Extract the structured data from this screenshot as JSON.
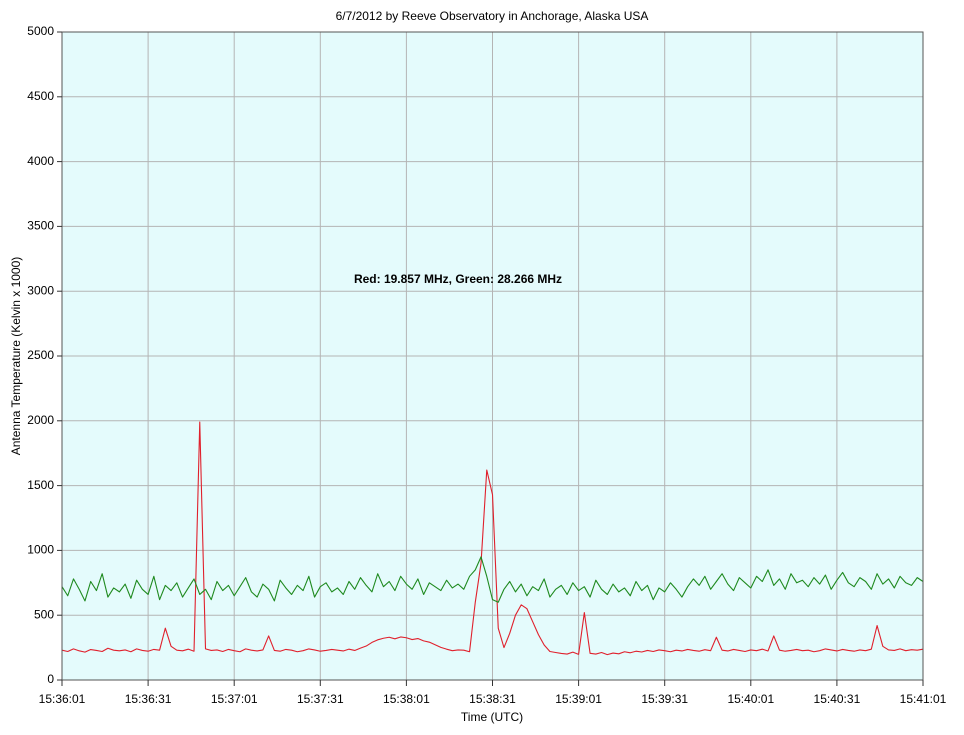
{
  "chart_data": {
    "type": "line",
    "title": "6/7/2012  by  Reeve Observatory  in  Anchorage, Alaska  USA",
    "annotation": "Red: 19.857 MHz, Green: 28.266 MHz",
    "xlabel": "Time (UTC)",
    "ylabel": "Antenna Temperature (Kelvin x 1000)",
    "xlim": [
      "15:36:01",
      "15:41:01"
    ],
    "xticks": [
      "15:36:01",
      "15:36:31",
      "15:37:01",
      "15:37:31",
      "15:38:01",
      "15:38:31",
      "15:39:01",
      "15:39:31",
      "15:40:01",
      "15:40:31",
      "15:41:01"
    ],
    "ylim": [
      0,
      5000
    ],
    "yticks": [
      0,
      500,
      1000,
      1500,
      2000,
      2500,
      3000,
      3500,
      4000,
      4500,
      5000
    ],
    "grid": true,
    "x": [
      "15:36:01",
      "15:36:03",
      "15:36:05",
      "15:36:07",
      "15:36:09",
      "15:36:11",
      "15:36:13",
      "15:36:15",
      "15:36:17",
      "15:36:19",
      "15:36:21",
      "15:36:23",
      "15:36:25",
      "15:36:27",
      "15:36:29",
      "15:36:31",
      "15:36:33",
      "15:36:35",
      "15:36:37",
      "15:36:39",
      "15:36:41",
      "15:36:43",
      "15:36:45",
      "15:36:47",
      "15:36:49",
      "15:36:51",
      "15:36:53",
      "15:36:55",
      "15:36:57",
      "15:36:59",
      "15:37:01",
      "15:37:03",
      "15:37:05",
      "15:37:07",
      "15:37:09",
      "15:37:11",
      "15:37:13",
      "15:37:15",
      "15:37:17",
      "15:37:19",
      "15:37:21",
      "15:37:23",
      "15:37:25",
      "15:37:27",
      "15:37:29",
      "15:37:31",
      "15:37:33",
      "15:37:35",
      "15:37:37",
      "15:37:39",
      "15:37:41",
      "15:37:43",
      "15:37:45",
      "15:37:47",
      "15:37:49",
      "15:37:51",
      "15:37:53",
      "15:37:55",
      "15:37:57",
      "15:37:59",
      "15:38:01",
      "15:38:03",
      "15:38:05",
      "15:38:07",
      "15:38:09",
      "15:38:11",
      "15:38:13",
      "15:38:15",
      "15:38:17",
      "15:38:19",
      "15:38:21",
      "15:38:23",
      "15:38:25",
      "15:38:27",
      "15:38:29",
      "15:38:31",
      "15:38:33",
      "15:38:35",
      "15:38:37",
      "15:38:39",
      "15:38:41",
      "15:38:43",
      "15:38:45",
      "15:38:47",
      "15:38:49",
      "15:38:51",
      "15:38:53",
      "15:38:55",
      "15:38:57",
      "15:38:59",
      "15:39:01",
      "15:39:03",
      "15:39:05",
      "15:39:07",
      "15:39:09",
      "15:39:11",
      "15:39:13",
      "15:39:15",
      "15:39:17",
      "15:39:19",
      "15:39:21",
      "15:39:23",
      "15:39:25",
      "15:39:27",
      "15:39:29",
      "15:39:31",
      "15:39:33",
      "15:39:35",
      "15:39:37",
      "15:39:39",
      "15:39:41",
      "15:39:43",
      "15:39:45",
      "15:39:47",
      "15:39:49",
      "15:39:51",
      "15:39:53",
      "15:39:55",
      "15:39:57",
      "15:39:59",
      "15:40:01",
      "15:40:03",
      "15:40:05",
      "15:40:07",
      "15:40:09",
      "15:40:11",
      "15:40:13",
      "15:40:15",
      "15:40:17",
      "15:40:19",
      "15:40:21",
      "15:40:23",
      "15:40:25",
      "15:40:27",
      "15:40:29",
      "15:40:31",
      "15:40:33",
      "15:40:35",
      "15:40:37",
      "15:40:39",
      "15:40:41",
      "15:40:43",
      "15:40:45",
      "15:40:47",
      "15:40:49",
      "15:40:51",
      "15:40:53",
      "15:40:55",
      "15:40:57",
      "15:40:59",
      "15:41:01"
    ],
    "series": [
      {
        "name": "Red",
        "color": "#e0202c",
        "values": [
          230,
          220,
          240,
          225,
          215,
          235,
          228,
          220,
          245,
          230,
          225,
          232,
          218,
          240,
          228,
          222,
          236,
          230,
          400,
          260,
          230,
          225,
          238,
          222,
          1990,
          240,
          228,
          232,
          220,
          236,
          226,
          218,
          240,
          230,
          224,
          232,
          340,
          228,
          222,
          236,
          230,
          218,
          226,
          240,
          232,
          222,
          228,
          236,
          230,
          224,
          238,
          228,
          246,
          262,
          290,
          310,
          322,
          330,
          318,
          332,
          326,
          312,
          320,
          302,
          292,
          272,
          252,
          238,
          226,
          232,
          230,
          218,
          600,
          900,
          1620,
          1430,
          400,
          250,
          360,
          500,
          580,
          550,
          450,
          350,
          270,
          220,
          212,
          205,
          200,
          215,
          198,
          520,
          206,
          200,
          212,
          196,
          208,
          202,
          218,
          210,
          222,
          216,
          228,
          220,
          232,
          226,
          218,
          230,
          224,
          236,
          228,
          222,
          234,
          226,
          330,
          230,
          224,
          236,
          228,
          220,
          232,
          226,
          238,
          224,
          340,
          230,
          222,
          228,
          236,
          226,
          230,
          218,
          226,
          240,
          232,
          224,
          236,
          228,
          222,
          232,
          226,
          238,
          420,
          260,
          232,
          228,
          240,
          226,
          234,
          230,
          238
        ]
      },
      {
        "name": "Green",
        "color": "#1f8a1f",
        "values": [
          720,
          650,
          780,
          700,
          610,
          760,
          690,
          820,
          640,
          710,
          680,
          740,
          630,
          770,
          700,
          660,
          800,
          620,
          730,
          690,
          750,
          640,
          710,
          780,
          660,
          700,
          620,
          760,
          690,
          730,
          650,
          720,
          790,
          680,
          640,
          740,
          700,
          610,
          770,
          710,
          660,
          730,
          690,
          800,
          640,
          720,
          750,
          680,
          710,
          660,
          760,
          700,
          790,
          730,
          680,
          820,
          720,
          760,
          690,
          800,
          740,
          700,
          780,
          660,
          750,
          720,
          690,
          770,
          710,
          740,
          700,
          800,
          850,
          950,
          800,
          620,
          600,
          700,
          760,
          680,
          740,
          650,
          720,
          690,
          780,
          640,
          700,
          730,
          660,
          750,
          690,
          720,
          640,
          770,
          700,
          660,
          740,
          680,
          710,
          650,
          760,
          690,
          730,
          620,
          710,
          680,
          750,
          700,
          640,
          720,
          780,
          730,
          800,
          700,
          760,
          820,
          740,
          690,
          790,
          750,
          710,
          800,
          760,
          850,
          730,
          780,
          700,
          820,
          750,
          770,
          720,
          790,
          740,
          810,
          700,
          770,
          830,
          750,
          720,
          790,
          760,
          700,
          820,
          740,
          780,
          710,
          800,
          750,
          730,
          790,
          760
        ]
      }
    ]
  }
}
